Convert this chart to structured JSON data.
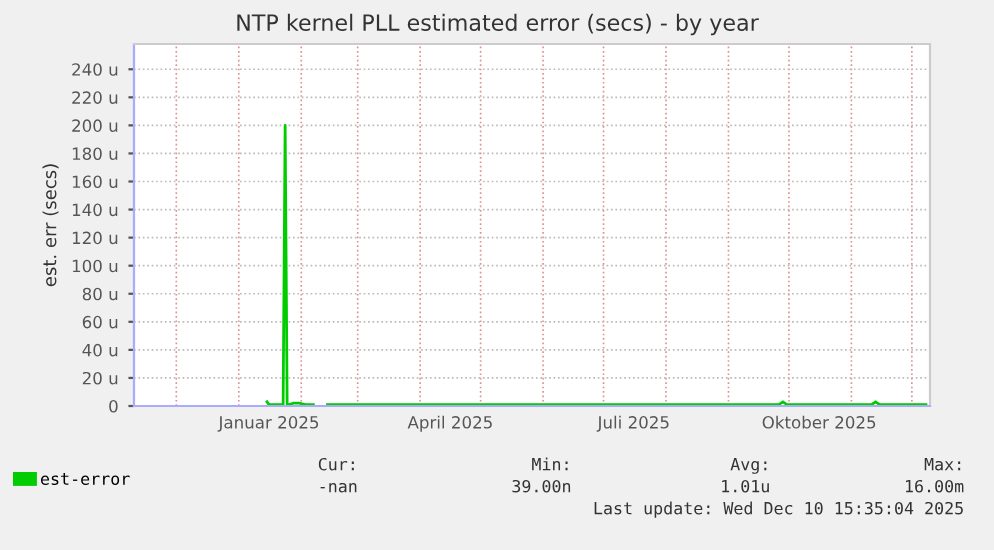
{
  "chart_data": {
    "type": "line",
    "title": "NTP kernel PLL estimated error (secs) - by year",
    "ylabel": "est. err (secs)",
    "x": [
      "2025-01-15",
      "2025-01-16",
      "2025-01-18",
      "2025-01-21",
      "2025-01-23",
      "2025-01-24",
      "2025-01-25",
      "2025-01-26",
      "2025-01-28",
      "2025-01-31",
      "2025-02-03",
      "2025-02-05",
      "2025-02-07",
      "2025-02-08",
      "2025-02-14",
      "2025-03-15",
      "2025-05-01",
      "2025-07-01",
      "2025-09-01",
      "2025-09-26",
      "2025-09-28",
      "2025-09-30",
      "2025-11-11",
      "2025-11-13",
      "2025-11-15",
      "2025-12-08"
    ],
    "series": [
      {
        "name": "est-error",
        "color": "#00cc00",
        "values": [
          3,
          1,
          1,
          1,
          1,
          200,
          1,
          1,
          2,
          2,
          1,
          1,
          1,
          null,
          1,
          1,
          1,
          1,
          1,
          1,
          3,
          1,
          1,
          3,
          1,
          1
        ]
      }
    ],
    "xlim": [
      "2024-11-10",
      "2025-12-10"
    ],
    "xticks": [
      {
        "value": "2024-12-01",
        "label": null
      },
      {
        "value": "2025-01-01",
        "label": null
      },
      {
        "value": "2025-02-01",
        "label": null
      },
      {
        "value": "2025-03-01",
        "label": null
      },
      {
        "value": "2025-04-01",
        "label": null
      },
      {
        "value": "2025-05-01",
        "label": null
      },
      {
        "value": "2025-06-01",
        "label": null
      },
      {
        "value": "2025-07-01",
        "label": null
      },
      {
        "value": "2025-08-01",
        "label": null
      },
      {
        "value": "2025-09-01",
        "label": null
      },
      {
        "value": "2025-10-01",
        "label": null
      },
      {
        "value": "2025-11-01",
        "label": null
      },
      {
        "value": "2025-12-01",
        "label": null
      },
      {
        "value": "2025-01-16",
        "label": "Januar 2025"
      },
      {
        "value": "2025-04-16",
        "label": "April 2025"
      },
      {
        "value": "2025-07-16",
        "label": "Juli 2025"
      },
      {
        "value": "2025-10-16",
        "label": "Oktober 2025"
      }
    ],
    "ylim": [
      0,
      258
    ],
    "yticks": [
      0,
      {
        "value": 20,
        "label": "20 u"
      },
      {
        "value": 40,
        "label": "40 u"
      },
      {
        "value": 60,
        "label": "60 u"
      },
      {
        "value": 80,
        "label": "80 u"
      },
      {
        "value": 100,
        "label": "100 u"
      },
      {
        "value": 120,
        "label": "120 u"
      },
      {
        "value": 140,
        "label": "140 u"
      },
      {
        "value": 160,
        "label": "160 u"
      },
      {
        "value": 180,
        "label": "180 u"
      },
      {
        "value": 200,
        "label": "200 u"
      },
      {
        "value": 220,
        "label": "220 u"
      },
      {
        "value": 240,
        "label": "240 u"
      }
    ],
    "grid": true,
    "legend": "bottom",
    "annotations": [
      "Cur:",
      "Min:",
      "Avg:",
      "Max:",
      "-nan",
      "39.00n",
      "1.01u",
      "16.00m",
      "Last update: Wed Dec 10 15:35:04 2025"
    ]
  }
}
